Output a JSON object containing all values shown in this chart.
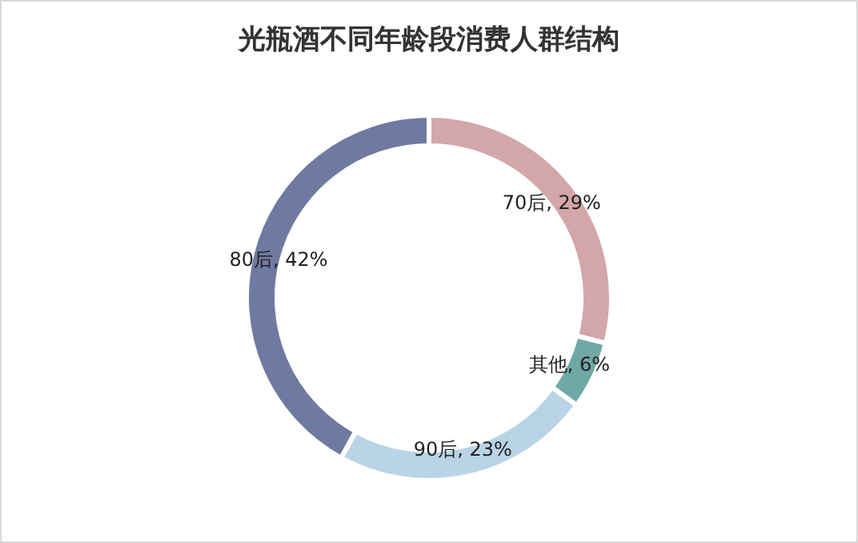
{
  "chart_data": {
    "type": "donut",
    "title": "光瓶酒不同年龄段消费人群结构",
    "categories": [
      "70后",
      "其他",
      "90后",
      "80后"
    ],
    "values": [
      29,
      6,
      23,
      42
    ],
    "value_labels": [
      "29%",
      "6%",
      "23%",
      "42%"
    ],
    "colors": [
      "#d3a6a9",
      "#6fa9a6",
      "#b9d4e6",
      "#6f7aa1"
    ]
  }
}
